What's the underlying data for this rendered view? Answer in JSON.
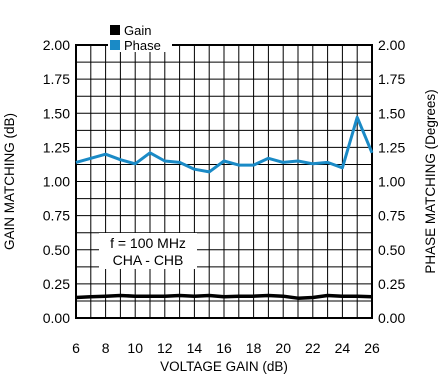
{
  "chart_data": {
    "type": "line",
    "title": "",
    "xlabel": "VOLTAGE GAIN (dB)",
    "ylabel_left": "GAIN MATCHING (dB)",
    "ylabel_right": "PHASE MATCHING (Degrees)",
    "xlim": [
      6,
      26
    ],
    "ylim_left": [
      0,
      2
    ],
    "ylim_right": [
      0,
      2
    ],
    "x_ticks": [
      "6",
      "8",
      "10",
      "12",
      "14",
      "16",
      "18",
      "20",
      "22",
      "24",
      "26"
    ],
    "y_ticks_left": [
      "0.00",
      "0.25",
      "0.50",
      "0.75",
      "1.00",
      "1.25",
      "1.50",
      "1.75",
      "2.00"
    ],
    "y_ticks_right": [
      "0.00",
      "0.25",
      "0.50",
      "0.75",
      "1.00",
      "1.25",
      "1.50",
      "1.75",
      "2.00"
    ],
    "grid": true,
    "legend_position": "top-left",
    "annotation": [
      "f = 100 MHz",
      "CHA - CHB"
    ],
    "series": [
      {
        "name": "Gain",
        "color": "#000000",
        "x": [
          6,
          7,
          8,
          9,
          10,
          11,
          12,
          13,
          14,
          15,
          16,
          17,
          18,
          19,
          20,
          21,
          22,
          23,
          24,
          25,
          26
        ],
        "values": [
          0.15,
          0.155,
          0.16,
          0.165,
          0.16,
          0.16,
          0.16,
          0.165,
          0.16,
          0.165,
          0.155,
          0.16,
          0.16,
          0.165,
          0.16,
          0.145,
          0.15,
          0.165,
          0.16,
          0.16,
          0.155
        ]
      },
      {
        "name": "Phase",
        "color": "#1a8ac6",
        "x": [
          6,
          7,
          8,
          9,
          10,
          11,
          12,
          13,
          14,
          15,
          16,
          17,
          18,
          19,
          20,
          21,
          22,
          23,
          24,
          25,
          26
        ],
        "values": [
          1.14,
          1.17,
          1.2,
          1.16,
          1.13,
          1.21,
          1.15,
          1.14,
          1.09,
          1.07,
          1.15,
          1.12,
          1.12,
          1.17,
          1.14,
          1.15,
          1.13,
          1.14,
          1.1,
          1.47,
          1.21
        ]
      }
    ]
  }
}
